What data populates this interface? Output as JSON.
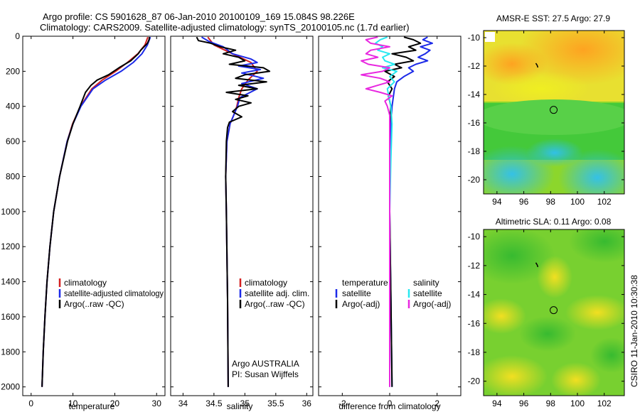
{
  "figure": {
    "title_line1": "Argo profile: CS 5901628_87 06-Jan-2010 20100109_169 15.084S 98.226E",
    "title_line2": "Climatology: CARS2009. Satellite-adjusted climatology: synTS_20100105.nc (1.7d earlier)",
    "credit": "CSIRO 11-Jan-2010 10:30:38",
    "owner_line1": "Argo AUSTRALIA",
    "owner_line2": "PI: Susan Wijffels"
  },
  "colors": {
    "climatology": "#d42020",
    "satellite": "#1c2ae8",
    "argo": "#000000",
    "salinity_satellite": "#28e8f0",
    "salinity_argo": "#e828e0"
  },
  "chart_data": [
    {
      "type": "line",
      "id": "temperature",
      "xlabel": "temperature",
      "ylabel": "",
      "xlim": [
        -2,
        32
      ],
      "ylim": [
        2050,
        0
      ],
      "xticks": [
        "0",
        "10",
        "20",
        "30"
      ],
      "xtick_values": [
        0,
        10,
        20,
        30
      ],
      "yticks": [
        "0",
        "200",
        "400",
        "600",
        "800",
        "1000",
        "1200",
        "1400",
        "1600",
        "1800",
        "2000"
      ],
      "ytick_values": [
        0,
        200,
        400,
        600,
        800,
        1000,
        1200,
        1400,
        1600,
        1800,
        2000
      ],
      "legend": [
        "climatology",
        "satellite-adjusted climatology",
        "Argo(..raw -QC)"
      ],
      "series": [
        {
          "name": "climatology",
          "color_key": "climatology",
          "depth": [
            5,
            50,
            100,
            150,
            200,
            250,
            300,
            400,
            500,
            600,
            800,
            1000,
            1200,
            1400,
            1600,
            1800,
            2000
          ],
          "values": [
            27.9,
            27.2,
            25.5,
            23.0,
            20.2,
            17.0,
            14.5,
            11.8,
            9.9,
            8.6,
            6.8,
            5.4,
            4.5,
            3.8,
            3.3,
            2.9,
            2.6
          ]
        },
        {
          "name": "satellite-adjusted climatology",
          "color_key": "satellite",
          "depth": [
            5,
            50,
            100,
            150,
            200,
            250,
            300,
            400,
            500,
            600,
            800,
            1000,
            1200,
            1400,
            1600,
            1800,
            2000
          ],
          "values": [
            28.5,
            27.8,
            26.5,
            24.4,
            21.5,
            17.8,
            14.8,
            11.9,
            10.0,
            8.6,
            6.8,
            5.4,
            4.5,
            3.8,
            3.3,
            2.9,
            2.6
          ]
        },
        {
          "name": "Argo(..raw -QC)",
          "color_key": "argo",
          "depth": [
            5,
            20,
            40,
            60,
            80,
            100,
            140,
            180,
            220,
            250,
            280,
            320,
            400,
            500,
            600,
            800,
            1000,
            1200,
            1400,
            1600,
            1800,
            2000
          ],
          "values": [
            28.3,
            28.2,
            27.8,
            27.0,
            26.2,
            25.6,
            23.8,
            21.0,
            18.5,
            15.8,
            14.3,
            13.0,
            11.7,
            10.0,
            8.7,
            6.8,
            5.4,
            4.5,
            3.8,
            3.3,
            2.9,
            2.6
          ]
        }
      ]
    },
    {
      "type": "line",
      "id": "salinity",
      "xlabel": "salinity",
      "xlim": [
        33.8,
        36.1
      ],
      "ylim": [
        2050,
        0
      ],
      "xticks": [
        "34",
        "34.5",
        "35",
        "35.5",
        "36"
      ],
      "xtick_values": [
        34,
        34.5,
        35,
        35.5,
        36
      ],
      "legend": [
        "climatology",
        "satellite adj. clim.",
        "Argo(..raw -QC)"
      ],
      "series": [
        {
          "name": "climatology",
          "color_key": "climatology",
          "depth": [
            5,
            50,
            100,
            150,
            200,
            250,
            300,
            350,
            400,
            450,
            500,
            600,
            800,
            1000,
            1500,
            2000
          ],
          "values": [
            34.4,
            34.5,
            34.8,
            35.1,
            35.2,
            35.05,
            34.95,
            34.9,
            34.87,
            34.82,
            34.76,
            34.71,
            34.69,
            34.7,
            34.72,
            34.73
          ]
        },
        {
          "name": "satellite adj. clim.",
          "color_key": "satellite",
          "depth": [
            5,
            30,
            60,
            100,
            130,
            150,
            170,
            190,
            210,
            240,
            270,
            300,
            350,
            400,
            450,
            500,
            600,
            800,
            1000,
            1500,
            2000
          ],
          "values": [
            34.3,
            34.42,
            34.65,
            34.8,
            35.1,
            35.2,
            34.9,
            35.25,
            34.95,
            35.3,
            34.95,
            35.2,
            34.92,
            34.88,
            34.82,
            34.76,
            34.71,
            34.69,
            34.7,
            34.72,
            34.73
          ]
        },
        {
          "name": "Argo(..raw -QC)",
          "color_key": "argo",
          "depth": [
            5,
            25,
            40,
            60,
            80,
            100,
            120,
            140,
            160,
            180,
            200,
            220,
            240,
            260,
            280,
            300,
            320,
            340,
            360,
            380,
            400,
            430,
            460,
            490,
            520,
            600,
            800,
            1000,
            1500,
            2000
          ],
          "values": [
            34.22,
            34.25,
            34.45,
            34.6,
            34.85,
            34.65,
            34.9,
            35.0,
            34.75,
            35.3,
            35.4,
            35.0,
            34.85,
            35.35,
            34.9,
            35.2,
            34.7,
            35.05,
            34.85,
            35.1,
            34.9,
            34.8,
            34.95,
            34.75,
            34.72,
            34.7,
            34.69,
            34.7,
            34.72,
            34.73
          ]
        }
      ]
    },
    {
      "type": "line",
      "id": "difference",
      "xlabel": "difference from climatology",
      "xlim": [
        -3.0,
        3.0
      ],
      "ylim": [
        2050,
        0
      ],
      "xticks": [
        "-2",
        "0",
        "2"
      ],
      "xtick_values": [
        -2,
        0,
        2
      ],
      "legend_left_title": "temperature",
      "legend_left": [
        "satellite",
        "Argo(-adj)"
      ],
      "legend_right_title": "salinity",
      "legend_right": [
        "satellite",
        "Argo(-adj)"
      ],
      "series": [
        {
          "name": "temperature satellite",
          "color_key": "satellite",
          "depth": [
            5,
            20,
            40,
            60,
            80,
            100,
            120,
            140,
            160,
            180,
            200,
            230,
            260,
            300,
            400,
            500,
            700,
            1000,
            1500,
            2000
          ],
          "values": [
            1.6,
            1.4,
            1.8,
            1.3,
            1.7,
            1.5,
            1.2,
            1.6,
            1.1,
            0.8,
            1.0,
            0.6,
            0.3,
            0.2,
            0.1,
            0.05,
            0.0,
            0.0,
            0.05,
            0.1
          ]
        },
        {
          "name": "temperature Argo(-adj)",
          "color_key": "argo",
          "depth": [
            5,
            20,
            40,
            60,
            80,
            100,
            120,
            140,
            160,
            180,
            200,
            230,
            260,
            300,
            340,
            400,
            500,
            700,
            1000,
            1500,
            2000
          ],
          "values": [
            0.6,
            1.0,
            1.3,
            0.8,
            1.1,
            0.1,
            0.7,
            1.0,
            0.2,
            0.5,
            -0.2,
            0.2,
            -0.1,
            0.1,
            -0.05,
            0.05,
            0.0,
            0.0,
            0.0,
            0.05,
            0.1
          ]
        },
        {
          "name": "salinity satellite",
          "color_key": "salinity_satellite",
          "depth": [
            5,
            20,
            40,
            60,
            80,
            100,
            120,
            140,
            160,
            180,
            200,
            230,
            260,
            300,
            400,
            500,
            700,
            1000,
            1500,
            2000
          ],
          "values": [
            -0.1,
            -0.4,
            -0.6,
            -0.3,
            -0.5,
            0.0,
            -0.3,
            -0.2,
            0.2,
            -0.3,
            0.3,
            0.0,
            0.2,
            -0.1,
            0.05,
            0.1,
            0.05,
            0.0,
            0.0,
            0.0
          ]
        },
        {
          "name": "salinity Argo(-adj)",
          "color_key": "salinity_argo",
          "depth": [
            5,
            20,
            40,
            60,
            80,
            100,
            120,
            140,
            160,
            180,
            200,
            220,
            240,
            260,
            280,
            300,
            320,
            340,
            370,
            400,
            450,
            500,
            700,
            1000,
            1500,
            2000
          ],
          "values": [
            -0.5,
            -1.0,
            -0.8,
            0.0,
            -0.8,
            -1.0,
            -0.5,
            -1.2,
            -0.9,
            0.0,
            -0.3,
            -1.2,
            -0.4,
            0.0,
            -0.5,
            -1.0,
            -0.4,
            0.1,
            -0.2,
            -0.1,
            0.0,
            0.0,
            0.0,
            0.0,
            0.0,
            0.0
          ]
        }
      ]
    },
    {
      "type": "heatmap",
      "id": "sst_map",
      "title": "AMSR-E SST: 27.5 Argo: 27.9",
      "xlim": [
        93,
        103.5
      ],
      "ylim": [
        -21,
        -9.5
      ],
      "xticks": [
        "94",
        "96",
        "98",
        "100",
        "102"
      ],
      "xtick_values": [
        94,
        96,
        98,
        100,
        102
      ],
      "yticks": [
        "-10",
        "-12",
        "-14",
        "-16",
        "-18",
        "-20"
      ],
      "ytick_values": [
        -10,
        -12,
        -14,
        -16,
        -18,
        -20
      ],
      "float_position": [
        98.226,
        -15.084
      ],
      "track": [
        [
          96.9,
          -11.8
        ],
        [
          97.0,
          -11.95
        ],
        [
          97.05,
          -12.1
        ]
      ]
    },
    {
      "type": "heatmap",
      "id": "sla_map",
      "title": "Altimetric SLA: 0.11 Argo: 0.08",
      "xlim": [
        93,
        103.5
      ],
      "ylim": [
        -21,
        -9.5
      ],
      "xticks": [
        "94",
        "96",
        "98",
        "100",
        "102"
      ],
      "xtick_values": [
        94,
        96,
        98,
        100,
        102
      ],
      "yticks": [
        "-10",
        "-12",
        "-14",
        "-16",
        "-18",
        "-20"
      ],
      "ytick_values": [
        -10,
        -12,
        -14,
        -16,
        -18,
        -20
      ],
      "float_position": [
        98.226,
        -15.084
      ],
      "track": [
        [
          96.9,
          -11.8
        ],
        [
          97.0,
          -11.95
        ],
        [
          97.05,
          -12.1
        ]
      ]
    }
  ]
}
